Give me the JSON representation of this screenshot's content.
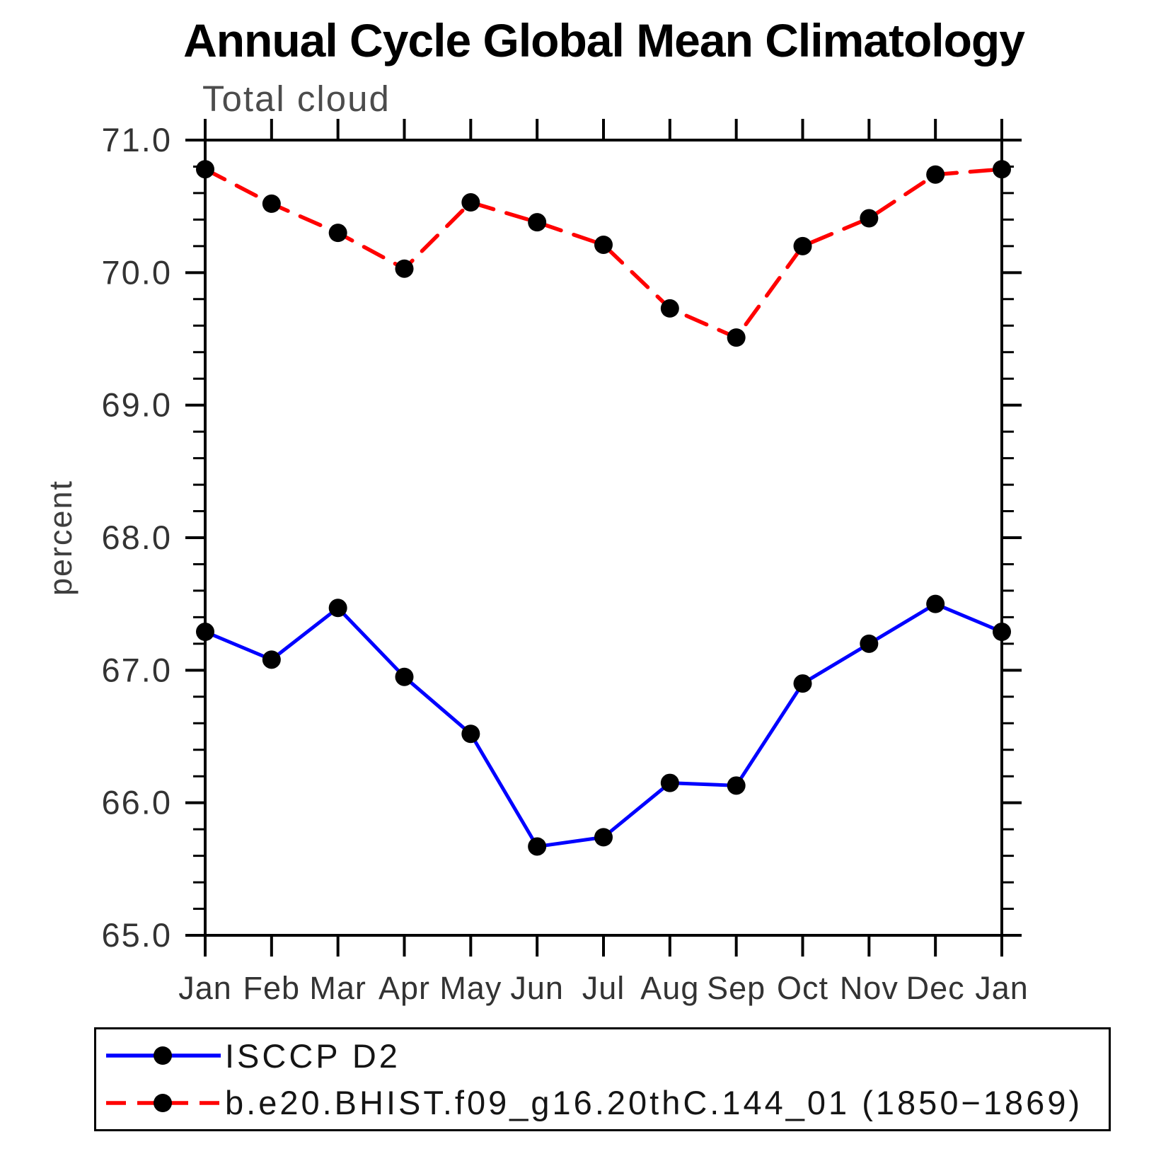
{
  "title": "Annual Cycle Global Mean Climatology",
  "chart_data": {
    "type": "line",
    "title": "Annual Cycle Global Mean Climatology",
    "subtitle": "Total cloud",
    "ylabel": "percent",
    "categories": [
      "Jan",
      "Feb",
      "Mar",
      "Apr",
      "May",
      "Jun",
      "Jul",
      "Aug",
      "Sep",
      "Oct",
      "Nov",
      "Dec",
      "Jan"
    ],
    "ylim": [
      65.0,
      71.0
    ],
    "y_major_step": 1.0,
    "y_minor_step": 0.2,
    "y_tick_labels": [
      "65.0",
      "66.0",
      "67.0",
      "68.0",
      "69.0",
      "70.0",
      "71.0"
    ],
    "grid": false,
    "legend_position": "bottom-left box",
    "axis_color": "#000000",
    "background_color": "#ffffff",
    "series": [
      {
        "name": "ISCCP D2",
        "color": "#0000ff",
        "line_style": "solid",
        "marker": "circle",
        "marker_color": "#000000",
        "values": [
          67.29,
          67.08,
          67.47,
          66.95,
          66.52,
          65.67,
          65.74,
          66.15,
          66.13,
          66.9,
          67.2,
          67.5,
          67.29
        ]
      },
      {
        "name": "b.e20.BHIST.f09_g16.20thC.144_01 (1850−1869)",
        "color": "#ff0000",
        "line_style": "dashed",
        "marker": "circle",
        "marker_color": "#000000",
        "values": [
          70.78,
          70.52,
          70.3,
          70.03,
          70.53,
          70.38,
          70.21,
          69.73,
          69.51,
          70.2,
          70.41,
          70.74,
          70.78
        ]
      }
    ]
  }
}
